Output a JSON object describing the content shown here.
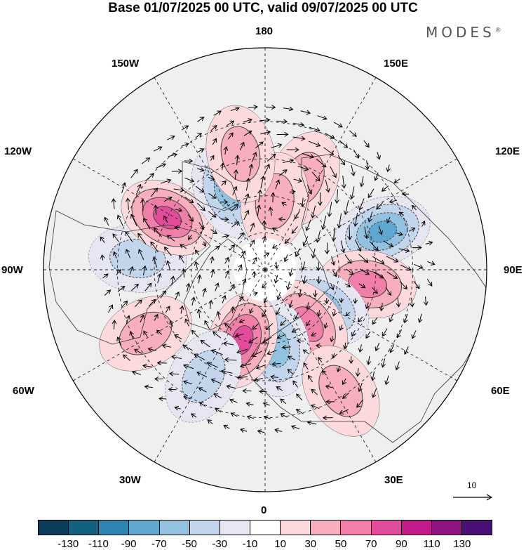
{
  "title": "Base 01/07/2025 00 UTC, valid 09/07/2025 00 UTC",
  "brand": "MODES",
  "brand_mark": "®",
  "longitudes": {
    "lon_180": "180",
    "lon_150w": "150W",
    "lon_150e": "150E",
    "lon_120w": "120W",
    "lon_120e": "120E",
    "lon_90w": "90W",
    "lon_90e": "90E",
    "lon_60w": "60W",
    "lon_60e": "60E",
    "lon_30w": "30W",
    "lon_30e": "30E",
    "lon_0": "0"
  },
  "reference_vector": "10",
  "colorbar": {
    "colors": [
      "#0d3d5c",
      "#14607f",
      "#2b87b2",
      "#5ea8cf",
      "#93c1e0",
      "#c3d5ea",
      "#e6e6f2",
      "#ffffff",
      "#fbd9dc",
      "#f7aebd",
      "#ef7fa8",
      "#e24c9a",
      "#c51b8a",
      "#8c1580",
      "#4b0f78"
    ],
    "ticks": [
      "-130",
      "-110",
      "-90",
      "-70",
      "-50",
      "-30",
      "-10",
      "10",
      "30",
      "50",
      "70",
      "90",
      "110",
      "130"
    ]
  },
  "anomalies": [
    {
      "lon": 157,
      "lat": 50,
      "value": 38
    },
    {
      "lon": 108,
      "lat": 40,
      "value": -60
    },
    {
      "lon": 82,
      "lat": 48,
      "value": 42
    },
    {
      "lon": 58,
      "lat": 62,
      "value": -45
    },
    {
      "lon": 38,
      "lat": 62,
      "value": 55
    },
    {
      "lon": 8,
      "lat": 58,
      "value": -52
    },
    {
      "lon": -18,
      "lat": 60,
      "value": 62
    },
    {
      "lon": -62,
      "lat": 35,
      "value": 28
    },
    {
      "lon": -95,
      "lat": 38,
      "value": -38
    },
    {
      "lon": -118,
      "lat": 45,
      "value": 62
    },
    {
      "lon": -155,
      "lat": 55,
      "value": -48
    },
    {
      "lon": 172,
      "lat": 62,
      "value": 38
    },
    {
      "lon": -168,
      "lat": 42,
      "value": 26
    },
    {
      "lon": 32,
      "lat": 32,
      "value": 34
    },
    {
      "lon": -30,
      "lat": 40,
      "value": -22
    }
  ]
}
